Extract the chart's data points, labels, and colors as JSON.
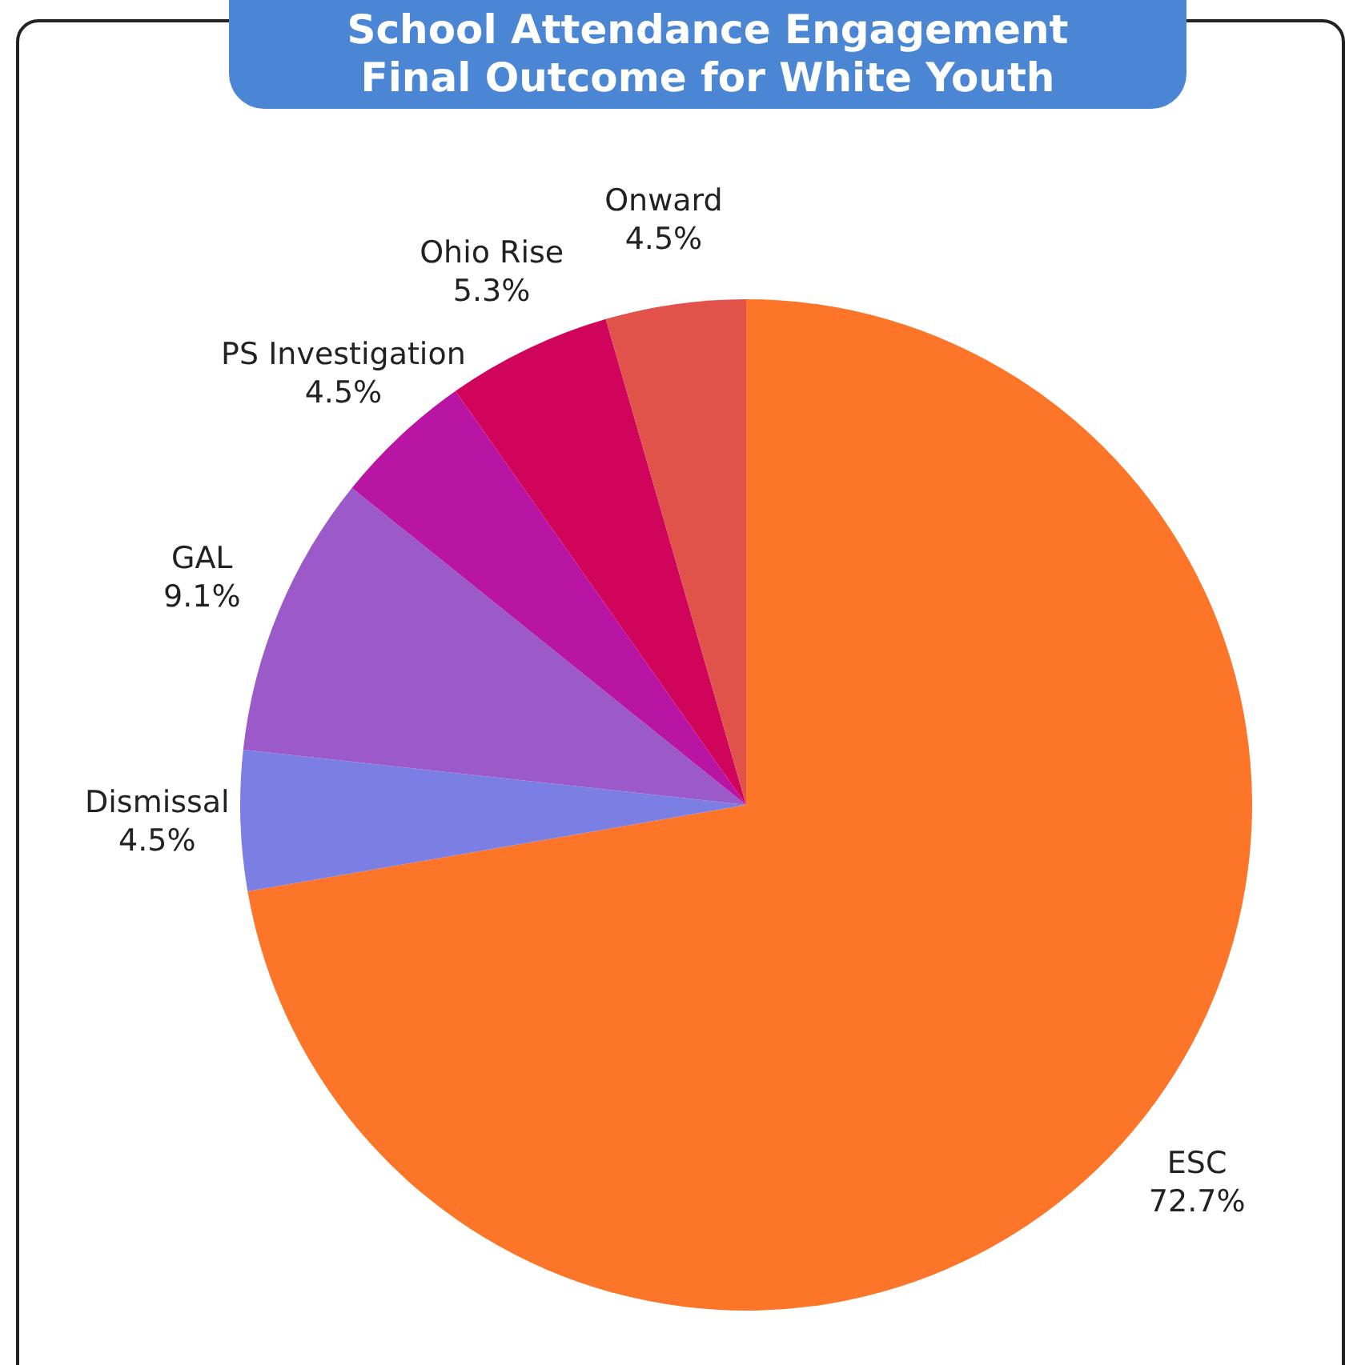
{
  "chart_data": {
    "type": "pie",
    "title": "School Attendance Engagement\nFinal Outcome for White Youth",
    "categories": [
      "ESC",
      "Dismissal",
      "GAL",
      "PS Investigation",
      "Ohio Rise",
      "Onward"
    ],
    "values": [
      72.7,
      4.5,
      9.1,
      4.5,
      5.3,
      4.5
    ],
    "value_labels": [
      "72.7%",
      "4.5%",
      "9.1%",
      "4.5%",
      "5.3%",
      "4.5%"
    ],
    "colors": [
      "#fd7528",
      "#7b7fe4",
      "#9b59c9",
      "#b815a4",
      "#d1045c",
      "#e0524a"
    ],
    "legend": false
  }
}
